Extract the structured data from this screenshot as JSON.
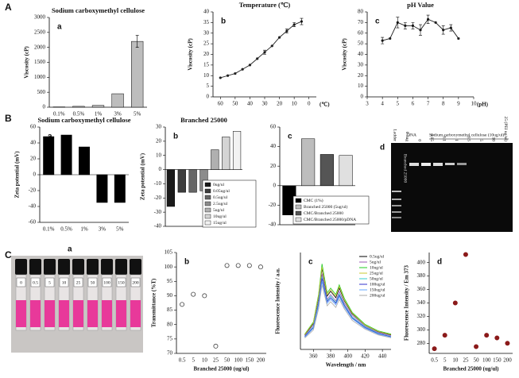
{
  "sections": [
    "A",
    "B",
    "C"
  ],
  "chart_data": [
    {
      "type": "bar",
      "panel": "a",
      "title": "Sodium carboxymethyl cellulose",
      "ylabel": "Viscosity (cP)",
      "categories": [
        "0.1%",
        "0.5%",
        "1%",
        "3%",
        "5%"
      ],
      "values": [
        10,
        30,
        60,
        450,
        2200
      ],
      "errors": [
        null,
        null,
        null,
        null,
        200
      ],
      "color": "#bdbdbd",
      "ylim": [
        0,
        3000
      ],
      "yticks": [
        0,
        500,
        1000,
        1500,
        2000,
        2500,
        3000
      ]
    },
    {
      "type": "line",
      "panel": "b",
      "title": "Temperature (℃)",
      "ylabel": "Viscosity (cP)",
      "xlabel": "(℃)",
      "x": [
        60,
        55,
        50,
        45,
        40,
        35,
        30,
        25,
        20,
        15,
        10,
        5
      ],
      "values": [
        9,
        10,
        11,
        13,
        15,
        18,
        21,
        24,
        28,
        31,
        34,
        35.5
      ],
      "errors": [
        null,
        null,
        null,
        null,
        null,
        null,
        1,
        null,
        null,
        1,
        1,
        1.5
      ],
      "color": "#222",
      "xlim": [
        65,
        -5
      ],
      "xticks": [
        60,
        50,
        40,
        30,
        20,
        10,
        0
      ],
      "ylim": [
        0,
        40
      ],
      "yticks": [
        0,
        5,
        10,
        15,
        20,
        25,
        30,
        35,
        40
      ]
    },
    {
      "type": "line",
      "panel": "c",
      "title": "pH Value",
      "ylabel": "Viscosity (cP)",
      "xlabel": "(pH)",
      "x": [
        4,
        4.5,
        5,
        5.5,
        6,
        6.5,
        7,
        7.5,
        8,
        8.5,
        9
      ],
      "values": [
        53,
        55,
        70,
        67,
        67,
        63,
        73,
        70,
        63,
        65,
        55
      ],
      "errors": [
        3,
        null,
        5,
        3,
        3,
        5,
        4,
        null,
        4,
        3,
        null
      ],
      "color": "#222",
      "xlim": [
        3,
        10
      ],
      "xticks": [
        3,
        4,
        5,
        6,
        7,
        8,
        9,
        10
      ],
      "ylim": [
        0,
        80
      ],
      "yticks": [
        0,
        10,
        20,
        30,
        40,
        50,
        60,
        70,
        80
      ]
    },
    {
      "type": "bar",
      "panel": "a",
      "title": "Sodium carboxymethyl cellulose",
      "ylabel": "Zeta potential (mV)",
      "categories": [
        "0.1%",
        "0.5%",
        "1%",
        "3%",
        "5%"
      ],
      "values": [
        48,
        50,
        35,
        -35,
        -35
      ],
      "color": "#000",
      "ylim": [
        -60,
        60
      ],
      "yticks": [
        -60,
        -40,
        -20,
        0,
        20,
        40,
        60
      ]
    },
    {
      "type": "bar",
      "panel": "b",
      "title": "Branched 25000",
      "ylabel": "Zeta potential (mV)",
      "categories": [
        "0ug/ul",
        "0.05ug/ul",
        "0.5ug/ul",
        "2.5ug/ul",
        "5ug/ul",
        "10ug/ul",
        "15ug/ul"
      ],
      "values": [
        -26,
        -16,
        -16,
        -15,
        14,
        23,
        27
      ],
      "colors": [
        "#1a1a1a",
        "#3d3d3d",
        "#666",
        "#8c8c8c",
        "#b0b0b0",
        "#d4d4d4",
        "#f2f2f2"
      ],
      "legend": "lower right",
      "ylim": [
        -40,
        30
      ],
      "yticks": [
        -40,
        -30,
        -20,
        -10,
        0,
        10,
        20,
        30
      ]
    },
    {
      "type": "bar",
      "panel": "c",
      "categories": [
        "CMC (1%)",
        "Branched 25000 (5ug/ul)",
        "CMC/Branched 25000",
        "CMC/Branched 25000/pDNA"
      ],
      "values": [
        -30,
        48,
        32,
        31
      ],
      "colors": [
        "#000",
        "#bdbdbd",
        "#555",
        "#e0e0e0"
      ],
      "legend": "lower right",
      "ylim": [
        -40,
        60
      ],
      "yticks": [
        -40,
        -20,
        0,
        20,
        40,
        60
      ]
    },
    {
      "type": "scatter",
      "panel": "b",
      "ylabel": "Transmittance (%T)",
      "xlabel": "Branched 25000 (ug/ul)",
      "categories": [
        "0.5",
        "5",
        "10",
        "25",
        "50",
        "100",
        "150",
        "200"
      ],
      "values": [
        87,
        90.5,
        90,
        72.5,
        100.5,
        100.5,
        100.5,
        100
      ],
      "color": "#444",
      "marker": "open",
      "ylim": [
        70,
        105
      ],
      "yticks": [
        70,
        75,
        80,
        85,
        90,
        95,
        100,
        105
      ]
    },
    {
      "type": "line",
      "panel": "c",
      "ylabel": "Fluorescence Intensity / a.u.",
      "xlabel": "Wavelength / nm",
      "x": [
        350,
        360,
        366,
        370,
        376,
        380,
        386,
        390,
        396,
        405,
        420,
        435,
        450
      ],
      "series": [
        {
          "name": "0.5ug/ul",
          "color": "#000",
          "values": [
            90,
            160,
            320,
            500,
            330,
            360,
            320,
            380,
            300,
            220,
            150,
            110,
            90
          ]
        },
        {
          "name": "5ug/ul",
          "color": "#9b59b6",
          "values": [
            85,
            150,
            300,
            470,
            310,
            340,
            300,
            360,
            285,
            210,
            145,
            105,
            85
          ]
        },
        {
          "name": "10ug/ul",
          "color": "#22cc22",
          "values": [
            95,
            170,
            340,
            530,
            350,
            380,
            340,
            400,
            315,
            230,
            155,
            115,
            95
          ]
        },
        {
          "name": "25ug/ul",
          "color": "#c8c832",
          "values": [
            92,
            165,
            330,
            510,
            340,
            370,
            330,
            390,
            305,
            225,
            150,
            112,
            92
          ]
        },
        {
          "name": "50ug/ul",
          "color": "#33cccc",
          "values": [
            80,
            140,
            290,
            450,
            300,
            330,
            290,
            345,
            275,
            200,
            140,
            100,
            80
          ]
        },
        {
          "name": "100ug/ul",
          "color": "#3333cc",
          "values": [
            78,
            135,
            280,
            440,
            295,
            320,
            285,
            335,
            270,
            195,
            135,
            98,
            78
          ]
        },
        {
          "name": "150ug/ul",
          "color": "#66aaff",
          "values": [
            75,
            130,
            270,
            420,
            285,
            310,
            275,
            325,
            260,
            190,
            130,
            95,
            75
          ]
        },
        {
          "name": "200ug/ul",
          "color": "#aaaaaa",
          "values": [
            70,
            120,
            250,
            400,
            270,
            295,
            260,
            310,
            250,
            180,
            125,
            90,
            72
          ]
        }
      ],
      "legend": "upper right",
      "xlim": [
        345,
        450
      ],
      "xticks": [
        360,
        380,
        400,
        420,
        440
      ],
      "ylim": [
        0,
        600
      ]
    },
    {
      "type": "scatter",
      "panel": "d",
      "ylabel": "Fluorescence Intensity / Em 373",
      "xlabel": "Branched 25000 (ug/ul)",
      "categories": [
        "0.5",
        "5",
        "10",
        "25",
        "50",
        "100",
        "150",
        "200"
      ],
      "values": [
        272,
        292,
        340,
        412,
        275,
        292,
        288,
        280
      ],
      "color": "#8b1a1a",
      "marker": "filled",
      "ylim": [
        265,
        415
      ],
      "yticks": [
        280,
        300,
        320,
        340,
        360,
        380,
        400
      ]
    }
  ],
  "gel": {
    "panel": "d",
    "top_labels": [
      "DNA",
      "Sodium carboxymethyl cellulose (10ug/ul)"
    ],
    "lane_labels": [
      "Ladder",
      "0.5ug",
      "0",
      "0.05",
      "0.1",
      "1",
      "0.5",
      "5",
      "10",
      "25 (PEI ug/ul)"
    ],
    "side_label": "Branched 25000"
  },
  "vials": {
    "panel": "a",
    "labels": [
      "0",
      "0.5",
      "5",
      "10",
      "25",
      "50",
      "100",
      "150",
      "200"
    ]
  }
}
